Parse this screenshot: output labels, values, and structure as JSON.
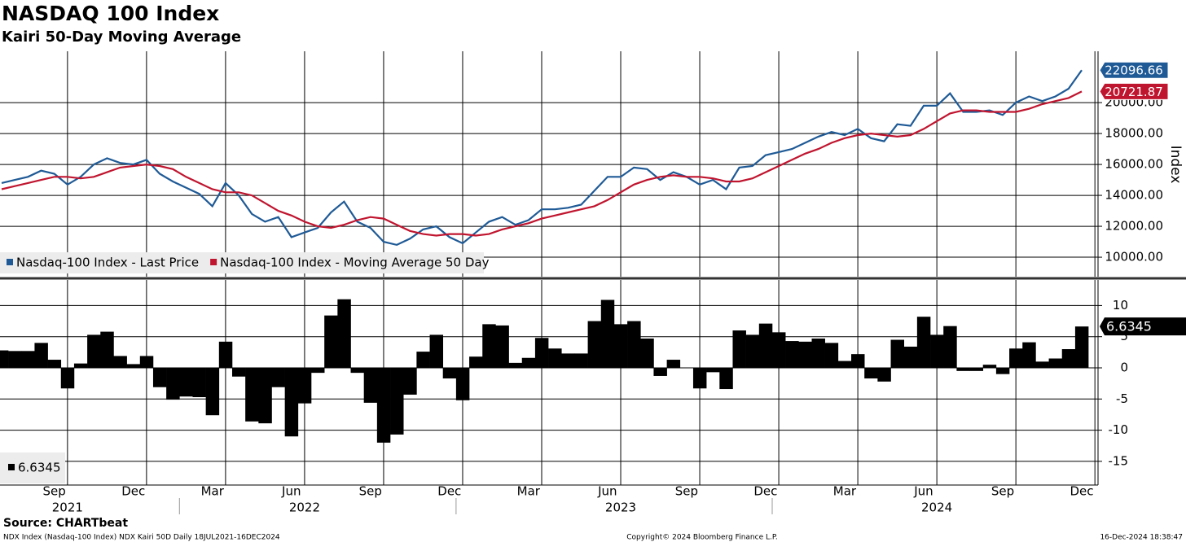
{
  "chart_data": [
    {
      "type": "line",
      "title": "NASDAQ 100 Index",
      "subtitle": "Kairi 50-Day Moving Average",
      "y_axis_label": "Index",
      "ylim": [
        8740,
        23320
      ],
      "yticks": [
        {
          "value": 10000,
          "label": "10000.00"
        },
        {
          "value": 12000,
          "label": "12000.00"
        },
        {
          "value": 14000,
          "label": "14000.00"
        },
        {
          "value": 16000,
          "label": "16000.00"
        },
        {
          "value": 18000,
          "label": "18000.00"
        },
        {
          "value": 20000,
          "label": "20000.00"
        }
      ],
      "grid": true,
      "legend": "bottom-left",
      "series": [
        {
          "name": "Nasdaq-100 Index - Last Price",
          "color": "#1f5a96",
          "values": [
            14800,
            15000,
            15200,
            15600,
            15400,
            14700,
            15200,
            16000,
            16400,
            16100,
            16000,
            16300,
            15400,
            14900,
            14500,
            14100,
            13300,
            14800,
            14000,
            12800,
            12300,
            12600,
            11300,
            11600,
            11900,
            12900,
            13600,
            12300,
            11900,
            11000,
            10800,
            11200,
            11800,
            12000,
            11300,
            10900,
            11600,
            12300,
            12600,
            12100,
            12400,
            13100,
            13100,
            13200,
            13400,
            14300,
            15200,
            15200,
            15800,
            15700,
            15000,
            15500,
            15200,
            14700,
            15000,
            14400,
            15800,
            15900,
            16600,
            16800,
            17000,
            17400,
            17800,
            18100,
            17900,
            18300,
            17700,
            17500,
            18600,
            18500,
            19800,
            19800,
            20600,
            19400,
            19400,
            19500,
            19200,
            20000,
            20400,
            20100,
            20400,
            20900,
            22096.66
          ]
        },
        {
          "name": "Nasdaq-100 Index - Moving Average 50 Day",
          "color": "#c0152f",
          "values": [
            14400,
            14600,
            14800,
            15000,
            15200,
            15200,
            15100,
            15200,
            15500,
            15800,
            15900,
            16000,
            15900,
            15700,
            15200,
            14800,
            14400,
            14200,
            14200,
            14000,
            13500,
            13000,
            12700,
            12300,
            12000,
            11900,
            12100,
            12400,
            12600,
            12500,
            12100,
            11700,
            11500,
            11400,
            11500,
            11500,
            11400,
            11500,
            11800,
            12000,
            12200,
            12500,
            12700,
            12900,
            13100,
            13300,
            13700,
            14200,
            14700,
            15000,
            15200,
            15300,
            15200,
            15200,
            15100,
            14900,
            14900,
            15100,
            15500,
            15900,
            16300,
            16700,
            17000,
            17400,
            17700,
            17900,
            18000,
            17900,
            17800,
            17900,
            18300,
            18800,
            19300,
            19500,
            19500,
            19400,
            19400,
            19400,
            19600,
            19900,
            20100,
            20300,
            20721.87
          ]
        }
      ]
    },
    {
      "type": "bar",
      "ylim": [
        -18.8,
        14.1
      ],
      "yticks": [
        10,
        5,
        0,
        -5,
        -10,
        -15
      ],
      "grid": true,
      "legend": "bottom-left",
      "categories": [
        null,
        null,
        null,
        null,
        "Sep",
        null,
        null,
        null,
        null,
        null,
        "Dec",
        null,
        null,
        null,
        null,
        null,
        "Mar",
        null,
        null,
        null,
        null,
        null,
        "Jun",
        null,
        null,
        null,
        null,
        null,
        "Sep",
        null,
        null,
        null,
        null,
        null,
        "Dec",
        null,
        null,
        null,
        null,
        null,
        "Mar",
        null,
        null,
        null,
        null,
        null,
        "Jun",
        null,
        null,
        null,
        null,
        null,
        "Sep",
        null,
        null,
        null,
        null,
        null,
        "Dec",
        null,
        null,
        null,
        null,
        null,
        "Mar",
        null,
        null,
        null,
        null,
        null,
        "Jun",
        null,
        null,
        null,
        null,
        null,
        "Sep",
        null,
        null,
        null,
        null,
        null,
        "Dec"
      ],
      "year_categories": [
        null,
        null,
        null,
        null,
        null,
        "2021",
        null,
        null,
        null,
        null,
        null,
        null,
        null,
        null,
        null,
        null,
        null,
        null,
        null,
        null,
        null,
        null,
        null,
        "2022",
        null,
        null,
        null,
        null,
        null,
        null,
        null,
        null,
        null,
        null,
        null,
        null,
        null,
        null,
        null,
        null,
        null,
        null,
        null,
        null,
        null,
        null,
        null,
        "2023",
        null,
        null,
        null,
        null,
        null,
        null,
        null,
        null,
        null,
        null,
        null,
        null,
        null,
        null,
        null,
        null,
        null,
        null,
        null,
        null,
        null,
        null,
        null,
        "2024",
        null,
        null,
        null,
        null,
        null,
        null,
        null,
        null,
        null,
        null,
        null
      ],
      "series": [
        {
          "name": "NDX Kairi 50D",
          "color": "#000000",
          "values": [
            2.8,
            2.7,
            2.7,
            4,
            1.3,
            -3.3,
            0.7,
            5.3,
            5.8,
            1.9,
            0.6,
            1.9,
            -3.1,
            -5.1,
            -4.6,
            -4.7,
            -7.6,
            4.2,
            -1.4,
            -8.6,
            -8.9,
            -3.1,
            -11,
            -5.7,
            -0.8,
            8.4,
            11,
            -0.8,
            -5.6,
            -12,
            -10.7,
            -4.3,
            2.6,
            5.3,
            -1.7,
            -5.2,
            1.8,
            7,
            6.8,
            0.8,
            1.6,
            4.8,
            3.1,
            2.3,
            2.3,
            7.5,
            10.9,
            7,
            7.5,
            4.7,
            -1.3,
            1.3,
            0,
            -3.3,
            -0.7,
            -3.4,
            6,
            5.3,
            7.1,
            5.7,
            4.3,
            4.2,
            4.7,
            4,
            1.1,
            2.2,
            -1.7,
            -2.2,
            4.5,
            3.4,
            8.2,
            5.3,
            6.7,
            -0.5,
            -0.5,
            0.5,
            -1,
            3.1,
            4.1,
            1,
            1.5,
            3,
            6.6345
          ]
        }
      ]
    }
  ],
  "footer": {
    "source": "Source: CHARTbeat",
    "description": "NDX Index (Nasdaq-100 Index) NDX Kairi 50D  Daily 18JUL2021-16DEC2024",
    "copyright": "Copyright© 2024 Bloomberg Finance L.P.",
    "timestamp": "16-Dec-2024 18:38:47"
  }
}
